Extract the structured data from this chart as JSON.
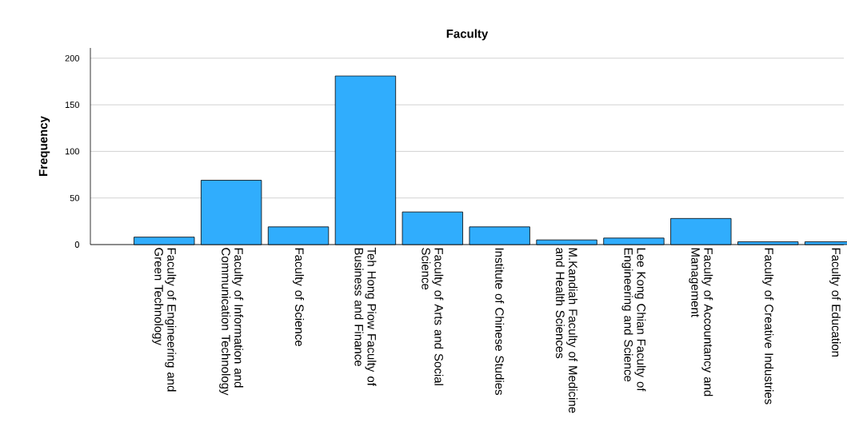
{
  "chart_data": {
    "type": "bar",
    "title": "Faculty",
    "ylabel": "Frequency",
    "categories": [
      "Faculty of Engineering and Green Technology",
      "Faculty of Information and Communication Technology",
      "Faculty of Science",
      "Teh Hong Piow Faculty of Business and Finance",
      "Faculty of Arts and Social Science",
      "Institute of Chinese Studies",
      "M.Kandiah Faculty of Medicine and Health Sciences",
      "Lee Kong Chian Faculty of Engineering and Science",
      "Faculty of Accountancy and Management",
      "Faculty of Creative Industries",
      "Faculty of Education"
    ],
    "values": [
      8,
      69,
      19,
      181,
      35,
      19,
      5,
      7,
      28,
      3,
      3
    ],
    "color": "#30adfd",
    "ylim": [
      0,
      211
    ],
    "yticks": [
      0,
      50,
      100,
      150,
      200
    ],
    "grid": "y"
  }
}
